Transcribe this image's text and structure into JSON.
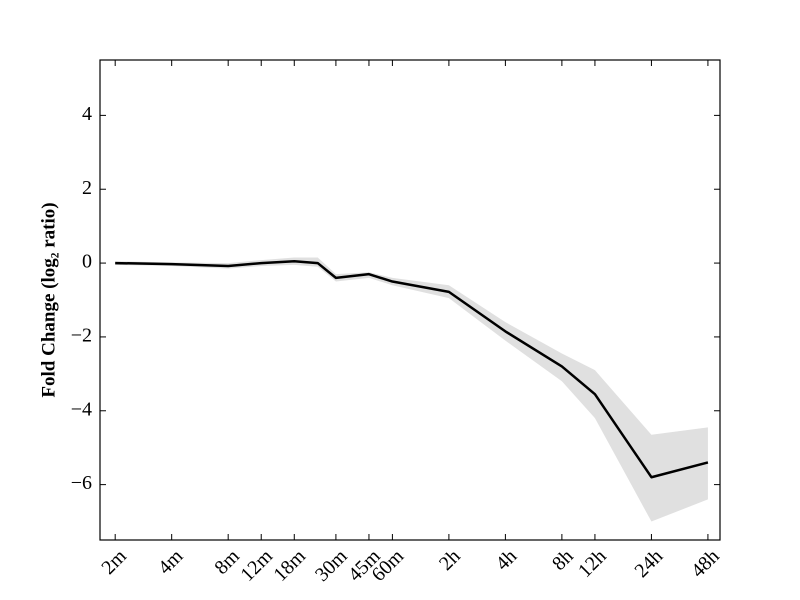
{
  "chart_data": {
    "type": "line",
    "y_label": "Fold Change (log₂ ratio)",
    "x_scale": "log",
    "x": [
      2,
      4,
      8,
      12,
      18,
      24,
      30,
      45,
      60,
      120,
      240,
      480,
      720,
      1440,
      2880
    ],
    "values": [
      0.0,
      -0.03,
      -0.08,
      0.0,
      0.05,
      0.0,
      -0.4,
      -0.3,
      -0.5,
      -0.78,
      -1.85,
      -2.8,
      -3.55,
      -5.8,
      -5.4
    ],
    "upper": [
      0.05,
      0.02,
      0.0,
      0.08,
      0.15,
      0.15,
      -0.3,
      -0.25,
      -0.4,
      -0.6,
      -1.6,
      -2.45,
      -2.9,
      -4.65,
      -4.45
    ],
    "lower": [
      -0.05,
      -0.08,
      -0.15,
      -0.08,
      -0.05,
      -0.1,
      -0.5,
      -0.4,
      -0.6,
      -0.95,
      -2.1,
      -3.2,
      -4.2,
      -7.0,
      -6.4
    ],
    "color": "#000000",
    "band_color": "#e0e0e0",
    "xlim": [
      1.66,
      3340
    ],
    "ylim": [
      -7.5,
      5.5
    ],
    "xticks": [
      {
        "value": 2,
        "label": "2m"
      },
      {
        "value": 4,
        "label": "4m"
      },
      {
        "value": 8,
        "label": "8m"
      },
      {
        "value": 12,
        "label": "12m"
      },
      {
        "value": 18,
        "label": "18m"
      },
      {
        "value": 30,
        "label": "30m"
      },
      {
        "value": 45,
        "label": "45m"
      },
      {
        "value": 60,
        "label": "60m"
      },
      {
        "value": 120,
        "label": "2h"
      },
      {
        "value": 240,
        "label": "4h"
      },
      {
        "value": 480,
        "label": "8h"
      },
      {
        "value": 720,
        "label": "12h"
      },
      {
        "value": 1440,
        "label": "24h"
      },
      {
        "value": 2880,
        "label": "48h"
      }
    ],
    "yticks": [
      {
        "value": -6,
        "label": "−6"
      },
      {
        "value": -4,
        "label": "−4"
      },
      {
        "value": -2,
        "label": "−2"
      },
      0,
      2,
      4
    ]
  }
}
